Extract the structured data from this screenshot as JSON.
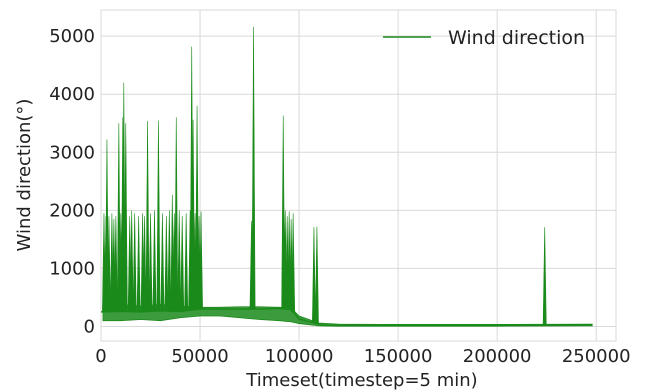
{
  "chart_data": {
    "type": "line",
    "title": "",
    "xlabel": "Timeset(timestep=5 min)",
    "ylabel": "Wind direction(°)",
    "xlim": [
      0,
      260000
    ],
    "ylim": [
      -250,
      5450
    ],
    "x_ticks": [
      0,
      50000,
      100000,
      150000,
      200000,
      250000
    ],
    "x_tick_labels": [
      "0",
      "50000",
      "100000",
      "150000",
      "200000",
      "250000"
    ],
    "y_ticks": [
      0,
      1000,
      2000,
      3000,
      4000,
      5000
    ],
    "y_tick_labels": [
      "0",
      "1000",
      "2000",
      "3000",
      "4000",
      "5000"
    ],
    "grid": true,
    "legend_position": "top-right",
    "series": [
      {
        "name": "Wind direction",
        "color": "#1a8a1a",
        "baseline": [
          [
            0,
            250
          ],
          [
            10000,
            260
          ],
          [
            20000,
            250
          ],
          [
            30000,
            270
          ],
          [
            40000,
            260
          ],
          [
            50000,
            300
          ],
          [
            60000,
            300
          ],
          [
            70000,
            300
          ],
          [
            80000,
            300
          ],
          [
            90000,
            310
          ],
          [
            96000,
            290
          ],
          [
            100000,
            130
          ],
          [
            104000,
            90
          ],
          [
            108000,
            60
          ],
          [
            112000,
            20
          ],
          [
            120000,
            20
          ],
          [
            140000,
            20
          ],
          [
            160000,
            20
          ],
          [
            180000,
            20
          ],
          [
            200000,
            20
          ],
          [
            220000,
            20
          ],
          [
            224000,
            25
          ],
          [
            230000,
            25
          ],
          [
            248000,
            25
          ]
        ],
        "noise_band": [
          [
            1000,
            100,
            350
          ],
          [
            10000,
            100,
            380
          ],
          [
            20000,
            120,
            350
          ],
          [
            30000,
            100,
            380
          ],
          [
            40000,
            150,
            350
          ],
          [
            50000,
            180,
            330
          ],
          [
            60000,
            180,
            330
          ],
          [
            70000,
            150,
            340
          ],
          [
            80000,
            120,
            340
          ],
          [
            90000,
            100,
            330
          ],
          [
            96000,
            80,
            320
          ],
          [
            100000,
            50,
            180
          ],
          [
            105000,
            30,
            120
          ],
          [
            110000,
            10,
            60
          ],
          [
            120000,
            5,
            40
          ],
          [
            150000,
            5,
            35
          ],
          [
            200000,
            5,
            35
          ],
          [
            248000,
            10,
            40
          ]
        ],
        "spikes": [
          [
            1500,
            1950
          ],
          [
            2500,
            1900
          ],
          [
            3000,
            3220
          ],
          [
            4000,
            1900
          ],
          [
            5500,
            1950
          ],
          [
            6500,
            1850
          ],
          [
            7500,
            1900
          ],
          [
            9000,
            3500
          ],
          [
            10000,
            1950
          ],
          [
            11000,
            3600
          ],
          [
            11500,
            4200
          ],
          [
            12500,
            3500
          ],
          [
            14500,
            1900
          ],
          [
            15500,
            2000
          ],
          [
            17000,
            1950
          ],
          [
            19000,
            1900
          ],
          [
            21000,
            1950
          ],
          [
            22000,
            1900
          ],
          [
            23500,
            3540
          ],
          [
            25000,
            1950
          ],
          [
            27000,
            2000
          ],
          [
            29000,
            3550
          ],
          [
            31000,
            1950
          ],
          [
            33000,
            1900
          ],
          [
            34500,
            2000
          ],
          [
            36000,
            2270
          ],
          [
            37000,
            1950
          ],
          [
            38000,
            3600
          ],
          [
            39500,
            2000
          ],
          [
            41000,
            1900
          ],
          [
            43000,
            1950
          ],
          [
            45000,
            2000
          ],
          [
            45800,
            4820
          ],
          [
            46500,
            3560
          ],
          [
            47500,
            1950
          ],
          [
            48500,
            3800
          ],
          [
            49500,
            1900
          ],
          [
            50500,
            1980
          ],
          [
            76000,
            1820
          ],
          [
            77000,
            5160
          ],
          [
            92000,
            3630
          ],
          [
            93000,
            2000
          ],
          [
            94000,
            1900
          ],
          [
            95000,
            1980
          ],
          [
            96000,
            1850
          ],
          [
            97000,
            1950
          ],
          [
            107500,
            1710
          ],
          [
            109000,
            1720
          ],
          [
            224000,
            1710
          ]
        ]
      }
    ]
  }
}
